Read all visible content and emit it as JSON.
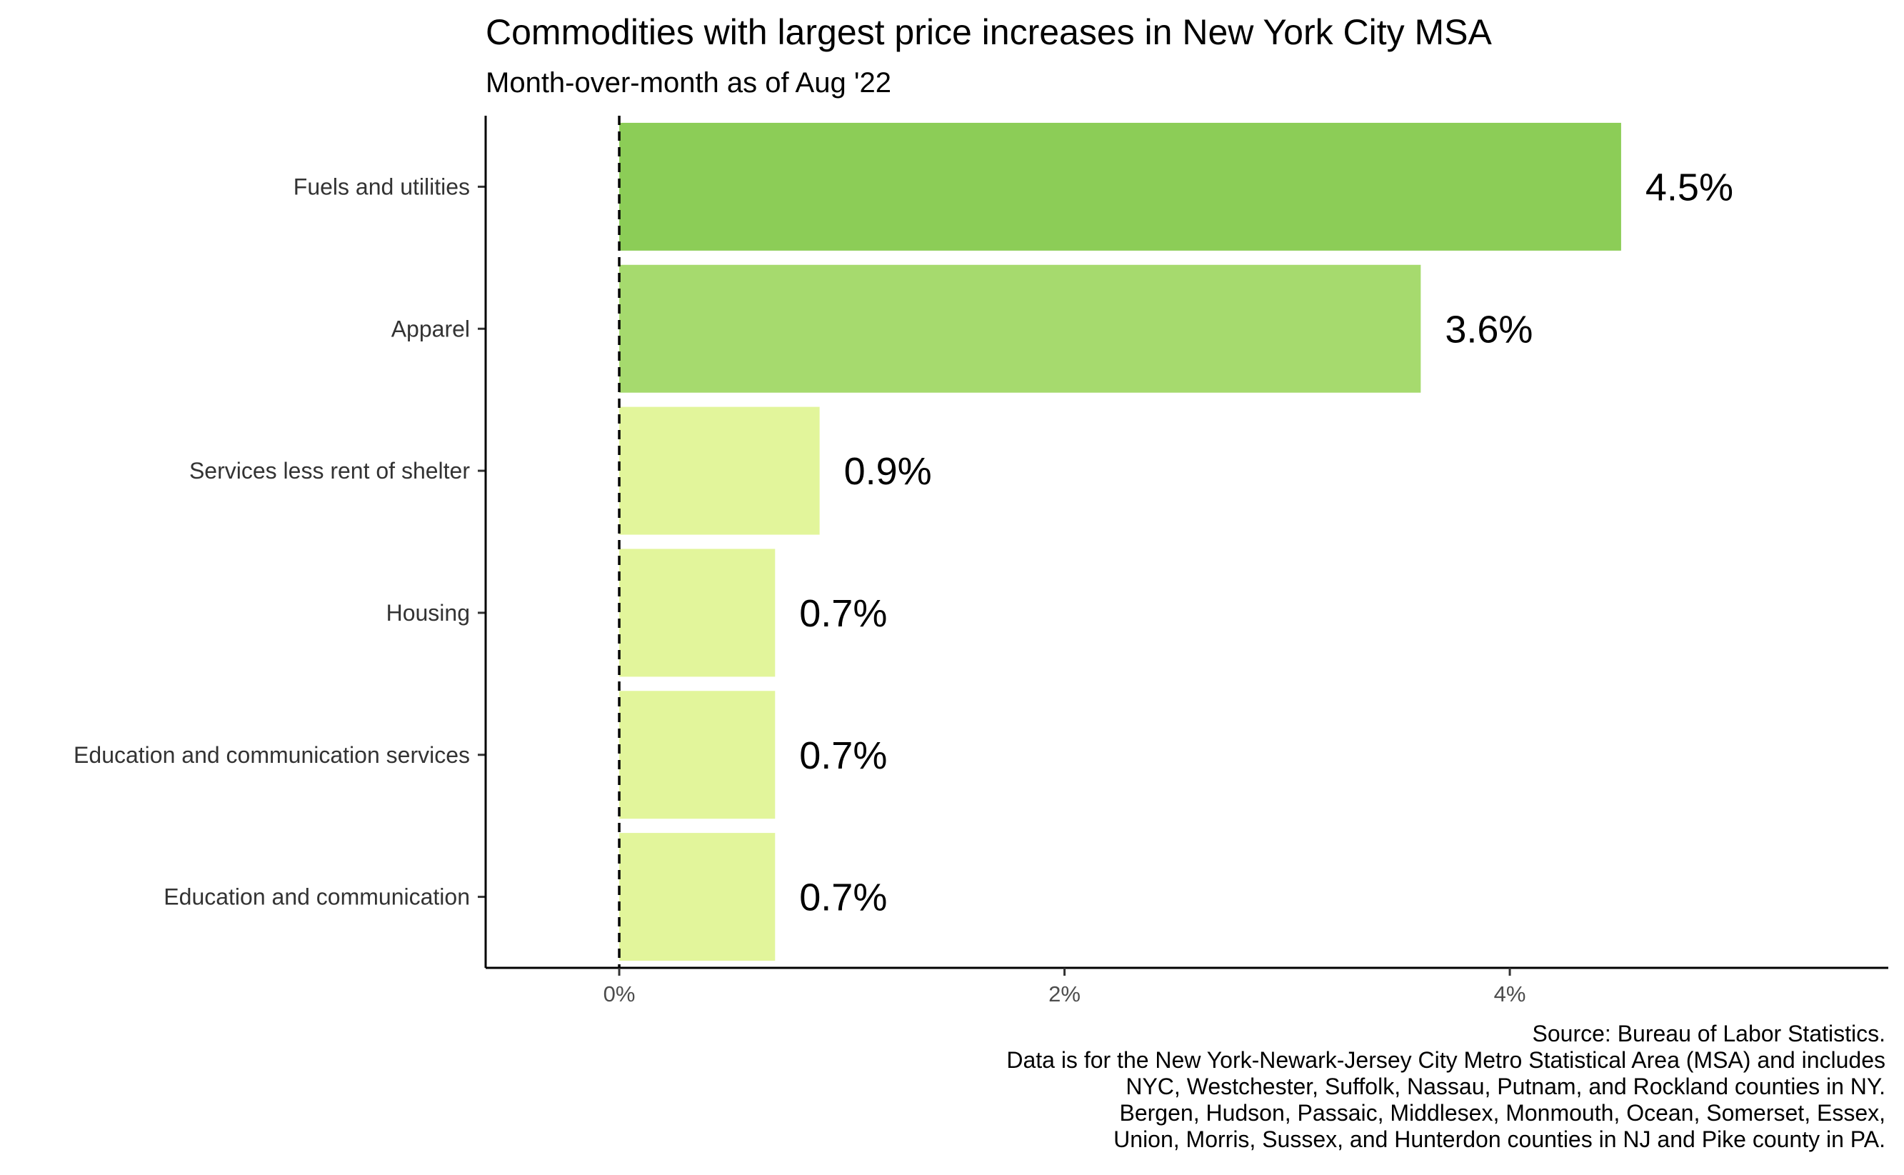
{
  "chart_data": {
    "type": "bar",
    "orientation": "horizontal",
    "title": "Commodities with largest price increases in New York City MSA",
    "subtitle": "Month-over-month as of Aug '22",
    "categories": [
      "Fuels and utilities",
      "Apparel",
      "Services less rent of shelter",
      "Housing",
      "Education and communication services",
      "Education and communication"
    ],
    "values": [
      4.5,
      3.6,
      0.9,
      0.7,
      0.7,
      0.7
    ],
    "data_labels": [
      "4.5%",
      "3.6%",
      "0.9%",
      "0.7%",
      "0.7%",
      "0.7%"
    ],
    "colors": [
      "#8ccd57",
      "#a6da6e",
      "#e2f59b",
      "#e2f59b",
      "#e2f59b",
      "#e2f59b"
    ],
    "xticks": [
      0,
      2,
      4
    ],
    "xtick_labels": [
      "0%",
      "2%",
      "4%"
    ],
    "xlim": [
      -0.6,
      5.7
    ],
    "reference_line": {
      "x": 0,
      "style": "dashed"
    },
    "xlabel": "",
    "ylabel": "",
    "grid": false,
    "legend": "none",
    "caption_lines": [
      "Source: Bureau of Labor Statistics.",
      "Data is for the New York-Newark-Jersey City Metro Statistical Area (MSA) and includes",
      "NYC, Westchester, Suffolk, Nassau, Putnam, and Rockland counties in NY.",
      "Bergen, Hudson, Passaic, Middlesex, Monmouth, Ocean, Somerset, Essex,",
      "Union, Morris, Sussex, and Hunterdon counties in NJ and Pike county in PA."
    ]
  }
}
